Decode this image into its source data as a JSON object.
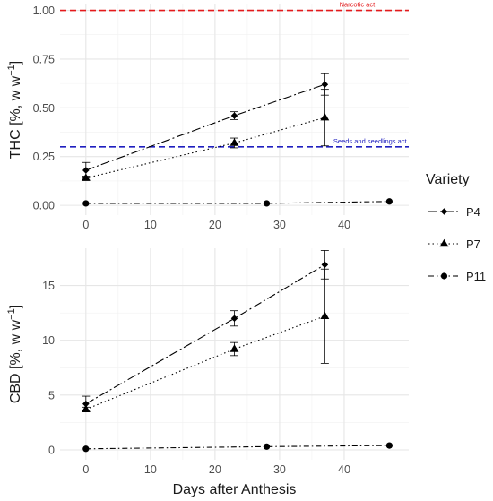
{
  "chart_data": {
    "type": "line",
    "xlabel": "Days after Anthesis",
    "legend": {
      "title": "Variety",
      "position": "right"
    },
    "series_styles": [
      {
        "name": "P4",
        "marker": "diamond",
        "dash": "10,3,2,3"
      },
      {
        "name": "P7",
        "marker": "triangle",
        "dash": "1.5,3"
      },
      {
        "name": "P11",
        "marker": "circle",
        "dash": "6,3,1.5,3"
      }
    ],
    "xlim": [
      -4,
      50
    ],
    "xticks": [
      0,
      10,
      20,
      30,
      40
    ],
    "grid": true,
    "panels": [
      {
        "id": "thc",
        "ylabel_main": "THC [%, w w",
        "ylabel_sup": "−1",
        "ylabel_close": "]",
        "ylim": [
          -0.05,
          1.03
        ],
        "yticks": [
          0,
          0.25,
          0.5,
          0.75,
          1.0
        ],
        "ytick_labels": [
          "0.00",
          "0.25",
          "0.50",
          "0.75",
          "1.00"
        ],
        "series": [
          {
            "name": "P4",
            "x": [
              0,
              23,
              37
            ],
            "y": [
              0.18,
              0.46,
              0.62
            ],
            "err": [
              0.04,
              0.02,
              0.055
            ]
          },
          {
            "name": "P7",
            "x": [
              0,
              23,
              37
            ],
            "y": [
              0.14,
              0.32,
              0.45
            ],
            "err": [
              0.01,
              0.025,
              0.145
            ]
          },
          {
            "name": "P11",
            "x": [
              0,
              28,
              47
            ],
            "y": [
              0.01,
              0.01,
              0.02
            ],
            "err": [
              0,
              0,
              0
            ]
          }
        ],
        "reference_lines": [
          {
            "y": 1.0,
            "label": "Narcotic act",
            "color": "#e41a1c",
            "label_x": 42
          },
          {
            "y": 0.3,
            "label": "Seeds and seedlings act",
            "color": "#1f1fbf",
            "label_x": 44
          }
        ]
      },
      {
        "id": "cbd",
        "ylabel_main": "CBD [%, w w",
        "ylabel_sup": "−1",
        "ylabel_close": "]",
        "ylim": [
          -0.9,
          18.4
        ],
        "yticks": [
          0,
          5,
          10,
          15
        ],
        "ytick_labels": [
          "0",
          "5",
          "10",
          "15"
        ],
        "series": [
          {
            "name": "P4",
            "x": [
              0,
              23,
              37
            ],
            "y": [
              4.2,
              12.0,
              16.9
            ],
            "err": [
              0.7,
              0.7,
              1.3
            ]
          },
          {
            "name": "P7",
            "x": [
              0,
              23,
              37
            ],
            "y": [
              3.7,
              9.2,
              12.2
            ],
            "err": [
              0.2,
              0.6,
              4.3
            ]
          },
          {
            "name": "P11",
            "x": [
              0,
              28,
              47
            ],
            "y": [
              0.1,
              0.3,
              0.4
            ],
            "err": [
              0,
              0,
              0
            ]
          }
        ],
        "reference_lines": []
      }
    ]
  }
}
